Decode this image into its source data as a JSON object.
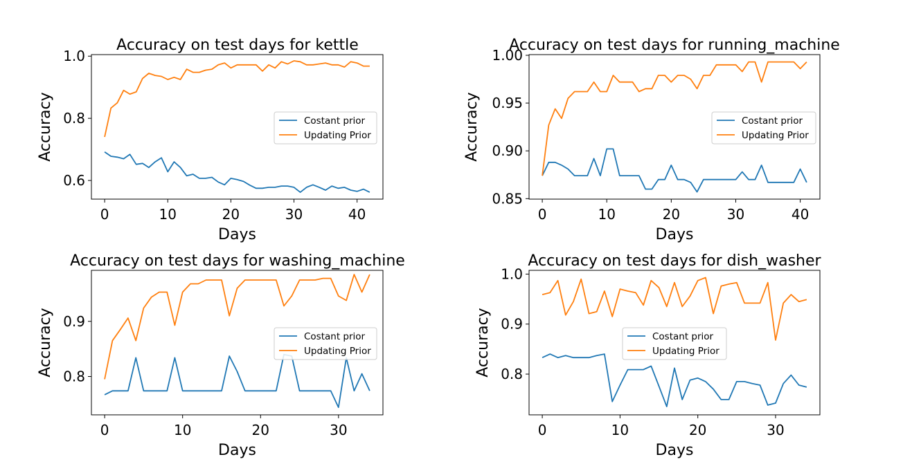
{
  "figure": {
    "background": "#ffffff"
  },
  "colors": {
    "constant": "#1f77b4",
    "updating": "#ff7f0e",
    "axis": "#000000"
  },
  "chart_data": [
    {
      "type": "line",
      "title": "Accuracy on test days for kettle",
      "xlabel": "Days",
      "ylabel": "Accuracy",
      "xlim": [
        -2.1,
        44.1
      ],
      "ylim": [
        0.54,
        1.005
      ],
      "xticks": [
        0,
        10,
        20,
        30,
        40
      ],
      "xtick_labels": [
        "0",
        "10",
        "20",
        "30",
        "40"
      ],
      "yticks": [
        0.6,
        0.8,
        1.0
      ],
      "ytick_labels": [
        "0.6",
        "0.8",
        "1.0"
      ],
      "grid": false,
      "legend": "center right",
      "x": [
        0,
        1,
        2,
        3,
        4,
        5,
        6,
        7,
        8,
        9,
        10,
        11,
        12,
        13,
        14,
        15,
        16,
        17,
        18,
        19,
        20,
        21,
        22,
        23,
        24,
        25,
        26,
        27,
        28,
        29,
        30,
        31,
        32,
        33,
        34,
        35,
        36,
        37,
        38,
        39,
        40,
        41,
        42
      ],
      "series": [
        {
          "name": "Costant prior",
          "values": [
            0.692,
            0.678,
            0.675,
            0.67,
            0.684,
            0.652,
            0.655,
            0.642,
            0.66,
            0.673,
            0.628,
            0.66,
            0.642,
            0.615,
            0.62,
            0.607,
            0.607,
            0.61,
            0.595,
            0.586,
            0.607,
            0.603,
            0.597,
            0.585,
            0.575,
            0.575,
            0.578,
            0.578,
            0.582,
            0.582,
            0.578,
            0.562,
            0.578,
            0.586,
            0.578,
            0.569,
            0.582,
            0.575,
            0.578,
            0.569,
            0.565,
            0.572,
            0.562
          ]
        },
        {
          "name": "Updating Prior",
          "values": [
            0.74,
            0.833,
            0.85,
            0.89,
            0.878,
            0.885,
            0.928,
            0.945,
            0.938,
            0.935,
            0.925,
            0.932,
            0.925,
            0.958,
            0.948,
            0.948,
            0.955,
            0.958,
            0.972,
            0.978,
            0.962,
            0.972,
            0.972,
            0.972,
            0.972,
            0.952,
            0.972,
            0.962,
            0.982,
            0.975,
            0.985,
            0.982,
            0.972,
            0.972,
            0.975,
            0.978,
            0.972,
            0.972,
            0.965,
            0.982,
            0.978,
            0.968,
            0.968
          ]
        }
      ]
    },
    {
      "type": "line",
      "title": "Accuracy on test days for running_machine",
      "xlabel": "Days",
      "ylabel": "Accuracy",
      "xlim": [
        -2.05,
        43.05
      ],
      "ylim": [
        0.8495,
        1.0007
      ],
      "xticks": [
        0,
        10,
        20,
        30,
        40
      ],
      "xtick_labels": [
        "0",
        "10",
        "20",
        "30",
        "40"
      ],
      "yticks": [
        0.85,
        0.9,
        0.95,
        1.0
      ],
      "ytick_labels": [
        "0.85",
        "0.90",
        "0.95",
        "1.00"
      ],
      "grid": false,
      "legend": "center right",
      "x": [
        0,
        1,
        2,
        3,
        4,
        5,
        6,
        7,
        8,
        9,
        10,
        11,
        12,
        13,
        14,
        15,
        16,
        17,
        18,
        19,
        20,
        21,
        22,
        23,
        24,
        25,
        26,
        27,
        28,
        29,
        30,
        31,
        32,
        33,
        34,
        35,
        36,
        37,
        38,
        39,
        40,
        41
      ],
      "series": [
        {
          "name": "Costant prior",
          "values": [
            0.874,
            0.888,
            0.888,
            0.885,
            0.881,
            0.874,
            0.874,
            0.874,
            0.892,
            0.874,
            0.902,
            0.902,
            0.874,
            0.874,
            0.874,
            0.874,
            0.86,
            0.86,
            0.87,
            0.87,
            0.885,
            0.87,
            0.87,
            0.867,
            0.857,
            0.87,
            0.87,
            0.87,
            0.87,
            0.87,
            0.87,
            0.878,
            0.87,
            0.87,
            0.885,
            0.867,
            0.867,
            0.867,
            0.867,
            0.867,
            0.881,
            0.867
          ]
        },
        {
          "name": "Updating Prior",
          "values": [
            0.874,
            0.927,
            0.944,
            0.934,
            0.955,
            0.962,
            0.962,
            0.962,
            0.972,
            0.962,
            0.962,
            0.979,
            0.972,
            0.972,
            0.972,
            0.962,
            0.965,
            0.965,
            0.979,
            0.979,
            0.972,
            0.979,
            0.979,
            0.975,
            0.965,
            0.979,
            0.979,
            0.99,
            0.99,
            0.99,
            0.99,
            0.983,
            0.993,
            0.993,
            0.972,
            0.993,
            0.993,
            0.993,
            0.993,
            0.993,
            0.986,
            0.993
          ]
        }
      ]
    },
    {
      "type": "line",
      "title": "Accuracy on test days for washing_machine",
      "xlabel": "Days",
      "ylabel": "Accuracy",
      "xlim": [
        -1.7,
        35.7
      ],
      "ylim": [
        0.7305,
        0.9925
      ],
      "xticks": [
        0,
        10,
        20,
        30
      ],
      "xtick_labels": [
        "0",
        "10",
        "20",
        "30"
      ],
      "yticks": [
        0.8,
        0.9
      ],
      "ytick_labels": [
        "0.8",
        "0.9"
      ],
      "grid": false,
      "legend": "center right",
      "x": [
        0,
        1,
        2,
        3,
        4,
        5,
        6,
        7,
        8,
        9,
        10,
        11,
        12,
        13,
        14,
        15,
        16,
        17,
        18,
        19,
        20,
        21,
        22,
        23,
        24,
        25,
        26,
        27,
        28,
        29,
        30,
        31,
        32,
        33,
        34
      ],
      "series": [
        {
          "name": "Costant prior",
          "values": [
            0.767,
            0.774,
            0.774,
            0.774,
            0.834,
            0.774,
            0.774,
            0.774,
            0.774,
            0.834,
            0.774,
            0.774,
            0.774,
            0.774,
            0.774,
            0.774,
            0.837,
            0.809,
            0.774,
            0.774,
            0.774,
            0.774,
            0.774,
            0.84,
            0.837,
            0.774,
            0.774,
            0.774,
            0.774,
            0.774,
            0.744,
            0.834,
            0.774,
            0.805,
            0.774
          ]
        },
        {
          "name": "Updating Prior",
          "values": [
            0.795,
            0.865,
            0.885,
            0.906,
            0.865,
            0.924,
            0.944,
            0.953,
            0.953,
            0.893,
            0.953,
            0.968,
            0.968,
            0.975,
            0.975,
            0.975,
            0.91,
            0.96,
            0.975,
            0.975,
            0.975,
            0.975,
            0.975,
            0.928,
            0.946,
            0.975,
            0.975,
            0.975,
            0.978,
            0.978,
            0.946,
            0.938,
            0.985,
            0.953,
            0.985
          ]
        }
      ]
    },
    {
      "type": "line",
      "title": "Accuracy on test days for dish_washer",
      "xlabel": "Days",
      "ylabel": "Accuracy",
      "xlim": [
        -1.7,
        35.7
      ],
      "ylim": [
        0.7185,
        1.0075
      ],
      "xticks": [
        0,
        10,
        20,
        30
      ],
      "xtick_labels": [
        "0",
        "10",
        "20",
        "30"
      ],
      "yticks": [
        0.8,
        0.9,
        1.0
      ],
      "ytick_labels": [
        "0.8",
        "0.9",
        "1.0"
      ],
      "grid": false,
      "legend": "center",
      "x": [
        0,
        1,
        2,
        3,
        4,
        5,
        6,
        7,
        8,
        9,
        10,
        11,
        12,
        13,
        14,
        15,
        16,
        17,
        18,
        19,
        20,
        21,
        22,
        23,
        24,
        25,
        26,
        27,
        28,
        29,
        30,
        31,
        32,
        33,
        34
      ],
      "series": [
        {
          "name": "Costant prior",
          "values": [
            0.833,
            0.84,
            0.833,
            0.837,
            0.833,
            0.833,
            0.833,
            0.837,
            0.84,
            0.745,
            0.778,
            0.809,
            0.809,
            0.809,
            0.816,
            0.776,
            0.735,
            0.812,
            0.749,
            0.788,
            0.792,
            0.785,
            0.77,
            0.749,
            0.749,
            0.785,
            0.785,
            0.781,
            0.778,
            0.738,
            0.742,
            0.781,
            0.798,
            0.778,
            0.774
          ]
        },
        {
          "name": "Updating Prior",
          "values": [
            0.959,
            0.963,
            0.987,
            0.918,
            0.945,
            0.99,
            0.921,
            0.925,
            0.966,
            0.915,
            0.97,
            0.966,
            0.963,
            0.938,
            0.987,
            0.973,
            0.935,
            0.983,
            0.935,
            0.956,
            0.987,
            0.993,
            0.921,
            0.976,
            0.98,
            0.983,
            0.942,
            0.942,
            0.942,
            0.983,
            0.868,
            0.942,
            0.959,
            0.945,
            0.949
          ]
        }
      ]
    }
  ]
}
